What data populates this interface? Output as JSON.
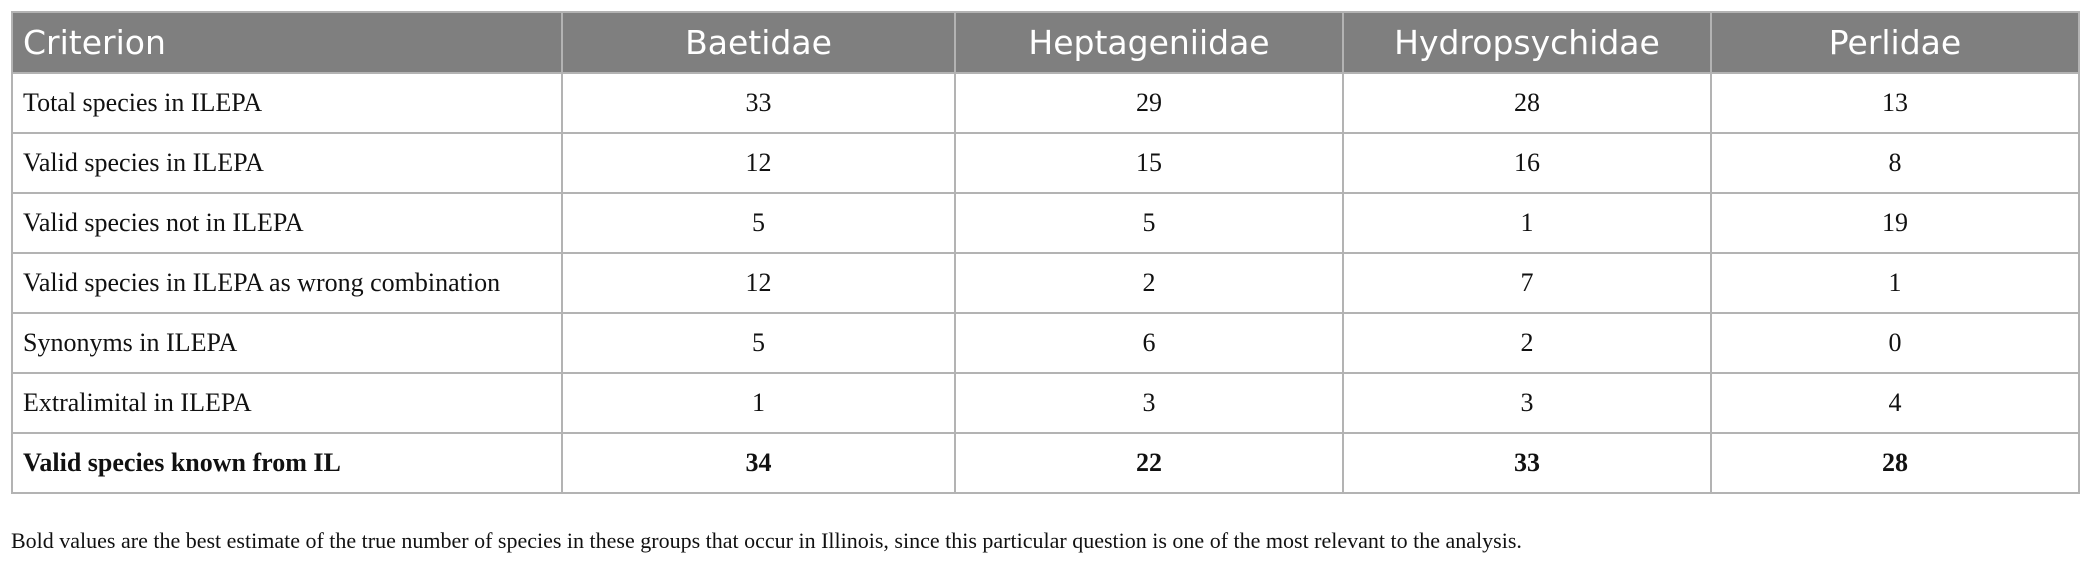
{
  "table": {
    "header": [
      "Criterion",
      "Baetidae",
      "Heptageniidae",
      "Hydropsychidae",
      "Perlidae"
    ],
    "rows": [
      [
        "Total species in ILEPA",
        33,
        29,
        28,
        13
      ],
      [
        "Valid species in ILEPA",
        12,
        15,
        16,
        8
      ],
      [
        "Valid species not in ILEPA",
        5,
        5,
        1,
        19
      ],
      [
        "Valid species in ILEPA as wrong combination",
        12,
        2,
        7,
        1
      ],
      [
        "Synonyms in ILEPA",
        5,
        6,
        2,
        0
      ],
      [
        "Extralimital in ILEPA",
        1,
        3,
        3,
        4
      ],
      [
        "Valid species known from IL",
        34,
        22,
        33,
        28
      ]
    ],
    "footnote": "Bold values are the best estimate of the true number of species in these groups that occur in Illinois, since this particular question is one of the most relevant to the analysis."
  }
}
